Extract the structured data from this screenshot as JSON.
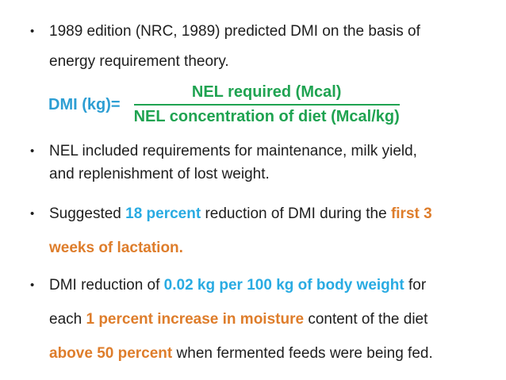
{
  "slide": {
    "colors": {
      "text": "#1e1e1e",
      "highlight_blue": "#29abe2",
      "formula_blue": "#2d9ed3",
      "highlight_orange": "#de7d2b",
      "formula_green": "#1fa351",
      "background": "#ffffff"
    },
    "bullet_glyph": "•",
    "formula": {
      "lhs": "DMI (kg)=",
      "numerator": "NEL required (Mcal)",
      "denominator": "NEL concentration of diet (Mcal/kg)"
    },
    "bullets": [
      {
        "lines": [
          {
            "segments": [
              {
                "t": "1989 edition (NRC, 1989) predicted DMI on the basis of",
                "s": "n"
              }
            ]
          },
          {
            "segments": [
              {
                "t": "energy requirement theory.",
                "s": "n"
              }
            ]
          }
        ]
      },
      {
        "lines": [
          {
            "segments": [
              {
                "t": "NEL included requirements for maintenance, milk yield,",
                "s": "n"
              }
            ]
          },
          {
            "segments": [
              {
                "t": "and replenishment of lost weight.",
                "s": "n"
              }
            ]
          }
        ]
      },
      {
        "lines": [
          {
            "segments": [
              {
                "t": "Suggested ",
                "s": "n"
              },
              {
                "t": "18 percent",
                "s": "b"
              },
              {
                "t": " reduction of DMI during the ",
                "s": "n"
              },
              {
                "t": "first 3",
                "s": "o"
              }
            ]
          },
          {
            "segments": [
              {
                "t": "weeks of lactation.",
                "s": "o"
              }
            ]
          }
        ]
      },
      {
        "lines": [
          {
            "segments": [
              {
                "t": "DMI reduction of ",
                "s": "n"
              },
              {
                "t": "0.02 kg per 100 kg of body weight",
                "s": "b"
              },
              {
                "t": " for",
                "s": "n"
              }
            ]
          },
          {
            "segments": [
              {
                "t": "each ",
                "s": "n"
              },
              {
                "t": "1 percent increase in moisture",
                "s": "o"
              },
              {
                "t": " content of the diet",
                "s": "n"
              }
            ]
          },
          {
            "segments": [
              {
                "t": "above 50 percent",
                "s": "o"
              },
              {
                "t": " when fermented feeds were being fed.",
                "s": "n"
              }
            ]
          }
        ]
      }
    ]
  }
}
